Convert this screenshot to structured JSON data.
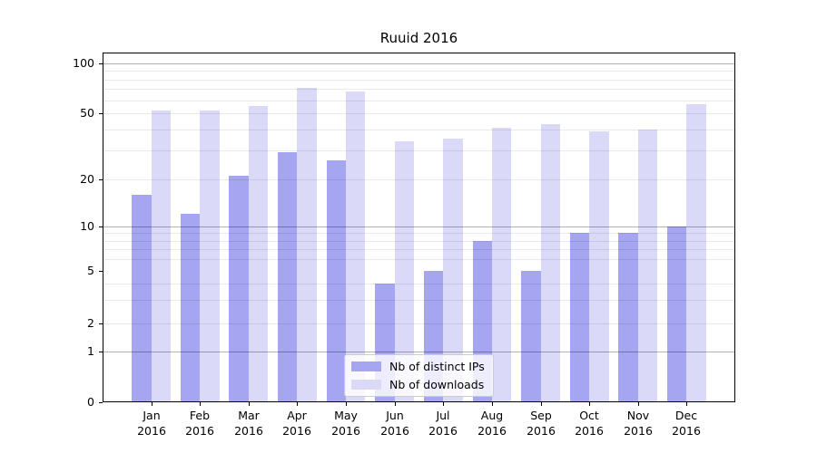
{
  "chart_data": {
    "type": "bar",
    "title": "Ruuid 2016",
    "categories": [
      "Jan",
      "Feb",
      "Mar",
      "Apr",
      "May",
      "Jun",
      "Jul",
      "Aug",
      "Sep",
      "Oct",
      "Nov",
      "Dec"
    ],
    "category_year": "2016",
    "series": [
      {
        "name": "Nb of distinct IPs",
        "color": "#a5a5f2",
        "values": [
          16,
          12,
          21,
          29,
          26,
          4,
          5,
          8,
          5,
          9,
          9,
          10
        ]
      },
      {
        "name": "Nb of downloads",
        "color": "#dadaf8",
        "values": [
          52,
          52,
          55,
          71,
          68,
          34,
          35,
          41,
          43,
          39,
          40,
          57
        ]
      }
    ],
    "yscale": "log-like with 0 baseline",
    "y_major_ticks": [
      0,
      1,
      2,
      5,
      10,
      20,
      50,
      100
    ],
    "y_emphasized_gridlines": [
      1,
      10,
      100
    ],
    "y_minor_gridlines": [
      2,
      3,
      4,
      6,
      7,
      8,
      9,
      20,
      30,
      40,
      50,
      60,
      70,
      80,
      90
    ],
    "ylim": [
      0,
      115
    ],
    "grid": true,
    "legend_position": "inside lower-center",
    "colors": {
      "axis": "#000000",
      "grid_major": "#b3b3b3",
      "grid_minor": "#eaeaea"
    }
  }
}
